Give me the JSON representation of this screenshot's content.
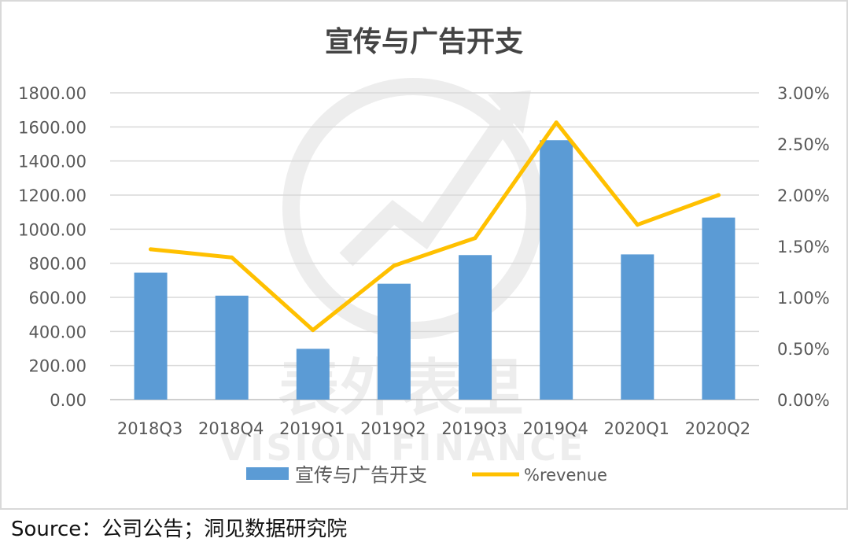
{
  "chart_data": {
    "type": "bar",
    "title": "宣传与广告开支",
    "categories": [
      "2018Q3",
      "2018Q4",
      "2019Q1",
      "2019Q2",
      "2019Q3",
      "2019Q4",
      "2020Q1",
      "2020Q2"
    ],
    "series": [
      {
        "name": "宣传与广告开支",
        "type": "bar",
        "axis": "left",
        "color": "#5b9bd5",
        "values": [
          745,
          610,
          298,
          680,
          848,
          1522,
          852,
          1068
        ]
      },
      {
        "name": "%revenue",
        "type": "line",
        "axis": "right",
        "color": "#ffc000",
        "values": [
          1.47,
          1.39,
          0.68,
          1.31,
          1.58,
          2.71,
          1.71,
          2.0
        ]
      }
    ],
    "y_left": {
      "min": 0,
      "max": 1800,
      "ticks": [
        "0.00",
        "200.00",
        "400.00",
        "600.00",
        "800.00",
        "1000.00",
        "1200.00",
        "1400.00",
        "1600.00",
        "1800.00"
      ]
    },
    "y_right": {
      "min": 0,
      "max": 3,
      "ticks": [
        "0.00%",
        "0.50%",
        "1.00%",
        "1.50%",
        "2.00%",
        "2.50%",
        "3.00%"
      ]
    },
    "grid": true,
    "legend_position": "bottom"
  },
  "source_text": "Source：公司公告；洞见数据研究院",
  "watermark": {
    "cn": "表外表里",
    "en": "VISION FINANCE"
  }
}
